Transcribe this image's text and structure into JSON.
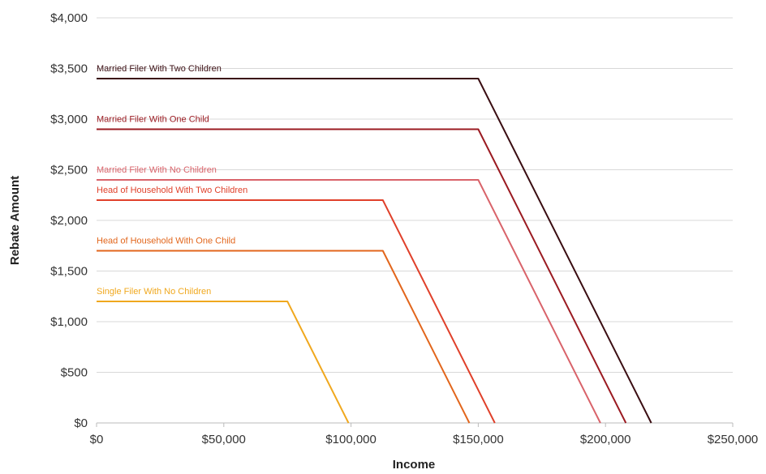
{
  "chart_data": {
    "type": "line",
    "title": "",
    "xlabel": "Income",
    "ylabel": "Rebate Amount",
    "xlim": [
      0,
      250000
    ],
    "ylim": [
      0,
      4000
    ],
    "x_ticks": [
      0,
      50000,
      100000,
      150000,
      200000,
      250000
    ],
    "x_tick_labels": [
      "$0",
      "$50,000",
      "$100,000",
      "$150,000",
      "$200,000",
      "$250,000"
    ],
    "y_ticks": [
      0,
      500,
      1000,
      1500,
      2000,
      2500,
      3000,
      3500,
      4000
    ],
    "y_tick_labels": [
      "$0",
      "$500",
      "$1,000",
      "$1,500",
      "$2,000",
      "$2,500",
      "$3,000",
      "$3,500",
      "$4,000"
    ],
    "grid": true,
    "legend": "inline labels above each line",
    "series": [
      {
        "name": "Married Filer With Two Children",
        "color": "#3a0d12",
        "points": [
          [
            0,
            3400
          ],
          [
            150000,
            3400
          ],
          [
            218000,
            0
          ]
        ]
      },
      {
        "name": "Married Filer With One Child",
        "color": "#9b1b22",
        "points": [
          [
            0,
            2900
          ],
          [
            150000,
            2900
          ],
          [
            208000,
            0
          ]
        ]
      },
      {
        "name": "Married Filer With No Children",
        "color": "#d9636a",
        "points": [
          [
            0,
            2400
          ],
          [
            150000,
            2400
          ],
          [
            198000,
            0
          ]
        ]
      },
      {
        "name": "Head of Household With Two Children",
        "color": "#e0402a",
        "points": [
          [
            0,
            2200
          ],
          [
            112500,
            2200
          ],
          [
            156500,
            0
          ]
        ]
      },
      {
        "name": "Head of Household With One Child",
        "color": "#e2661c",
        "points": [
          [
            0,
            1700
          ],
          [
            112500,
            1700
          ],
          [
            146500,
            0
          ]
        ]
      },
      {
        "name": "Single Filer With No Children",
        "color": "#f0a81e",
        "points": [
          [
            0,
            1200
          ],
          [
            75000,
            1200
          ],
          [
            99000,
            0
          ]
        ]
      }
    ]
  }
}
